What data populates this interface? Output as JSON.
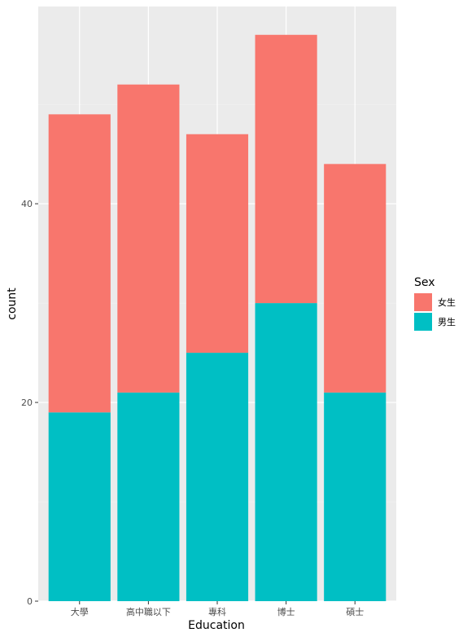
{
  "chart_data": {
    "type": "bar",
    "stacked": true,
    "xlabel": "Education",
    "ylabel": "count",
    "categories": [
      "大學",
      "高中職以下",
      "專科",
      "博士",
      "碩士"
    ],
    "series": [
      {
        "name": "女生",
        "color": "#F8766D",
        "values": [
          30,
          31,
          22,
          27,
          23
        ]
      },
      {
        "name": "男生",
        "color": "#00BFC4",
        "values": [
          19,
          21,
          25,
          30,
          21
        ]
      }
    ],
    "ylim": [
      0,
      59.85
    ],
    "yticks": [
      0,
      20,
      40
    ],
    "grid": true,
    "legend": {
      "title": "Sex",
      "position": "right"
    },
    "colors": {
      "panel": "#EBEBEB",
      "grid_major": "#FFFFFF",
      "grid_minor": "#F2F2F2"
    }
  }
}
